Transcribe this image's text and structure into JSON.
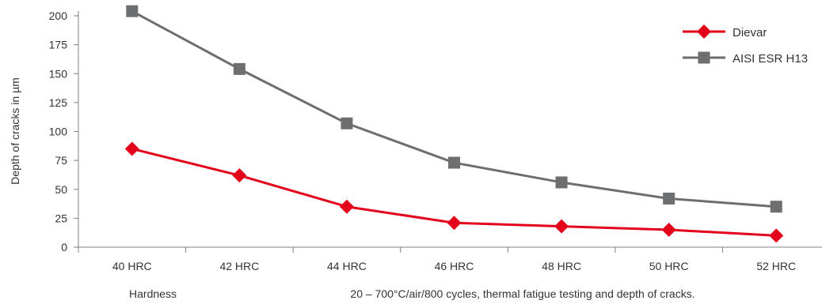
{
  "chart_data": {
    "type": "line",
    "categories": [
      "40 HRC",
      "42 HRC",
      "44 HRC",
      "46 HRC",
      "48 HRC",
      "50 HRC",
      "52 HRC"
    ],
    "series": [
      {
        "name": "Dievar",
        "color": "#e2001a",
        "marker": "diamond",
        "values": [
          85,
          62,
          35,
          21,
          18,
          15,
          10
        ]
      },
      {
        "name": "AISI ESR H13",
        "color": "#6d6e70",
        "marker": "square",
        "values": [
          204,
          154,
          107,
          73,
          56,
          42,
          35
        ]
      }
    ],
    "ylabel": "Depth of cracks in µm",
    "xlabel_left": "Hardness",
    "xlabel_right": "20 – 700°C/air/800 cycles, thermal fatigue testing and depth of cracks.",
    "ylim": [
      0,
      200
    ],
    "yticks": [
      0,
      25,
      50,
      75,
      100,
      125,
      150,
      175,
      200
    ],
    "grid": false,
    "legend_position": "top-right"
  }
}
